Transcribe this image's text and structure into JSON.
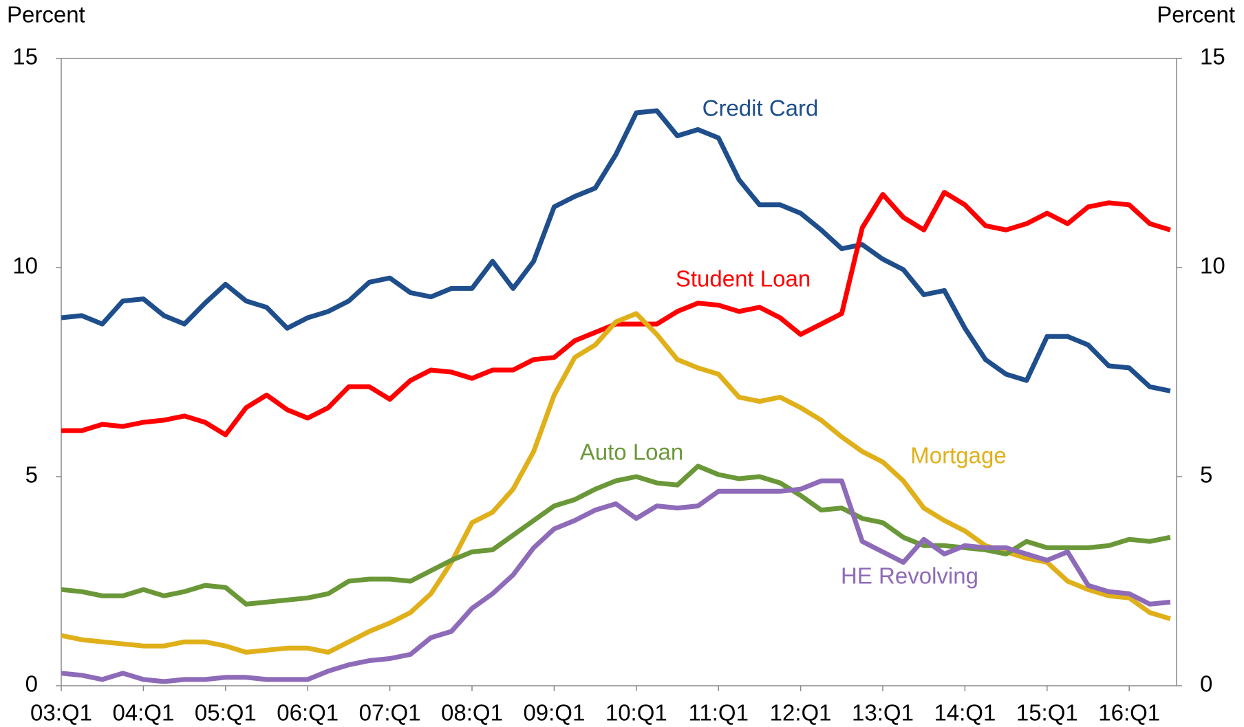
{
  "chart_data": {
    "type": "line",
    "y_label": "Percent",
    "y2_label": "Percent",
    "categories": [
      "03:Q1",
      null,
      null,
      null,
      "04:Q1",
      null,
      null,
      null,
      "05:Q1",
      null,
      null,
      null,
      "06:Q1",
      null,
      null,
      null,
      "07:Q1",
      null,
      null,
      null,
      "08:Q1",
      null,
      null,
      null,
      "09:Q1",
      null,
      null,
      null,
      "10:Q1",
      null,
      null,
      null,
      "11:Q1",
      null,
      null,
      null,
      "12:Q1",
      null,
      null,
      null,
      "13:Q1",
      null,
      null,
      null,
      "14:Q1",
      null,
      null,
      null,
      "15:Q1",
      null,
      null,
      null,
      "16:Q1",
      null,
      null
    ],
    "ylim": [
      0,
      15
    ],
    "yticks": [
      0,
      5,
      10,
      15
    ],
    "y2lim": [
      0,
      15
    ],
    "y2ticks": [
      0,
      5,
      10,
      15
    ],
    "series": [
      {
        "name": "Credit Card",
        "color": "#1f4e8c",
        "values": [
          8.8,
          8.85,
          8.65,
          9.2,
          9.25,
          8.85,
          8.65,
          9.15,
          9.6,
          9.2,
          9.05,
          8.55,
          8.8,
          8.95,
          9.2,
          9.65,
          9.75,
          9.4,
          9.3,
          9.5,
          9.5,
          10.15,
          9.5,
          10.15,
          11.45,
          11.7,
          11.9,
          12.7,
          13.7,
          13.75,
          13.15,
          13.3,
          13.1,
          12.1,
          11.5,
          11.5,
          11.3,
          10.9,
          10.45,
          10.55,
          10.2,
          9.95,
          9.35,
          9.45,
          8.55,
          7.8,
          7.45,
          7.3,
          8.35,
          8.35,
          8.15,
          7.65,
          7.6,
          7.15,
          7.05
        ]
      },
      {
        "name": "Student Loan",
        "color": "#ff0000",
        "values": [
          6.1,
          6.1,
          6.25,
          6.2,
          6.3,
          6.35,
          6.45,
          6.3,
          6.0,
          6.65,
          6.95,
          6.6,
          6.4,
          6.65,
          7.15,
          7.15,
          6.85,
          7.3,
          7.55,
          7.5,
          7.35,
          7.55,
          7.55,
          7.8,
          7.85,
          8.25,
          8.45,
          8.65,
          8.65,
          8.65,
          8.95,
          9.15,
          9.1,
          8.95,
          9.05,
          8.8,
          8.4,
          8.65,
          8.9,
          10.95,
          11.75,
          11.2,
          10.9,
          11.8,
          11.5,
          11.0,
          10.9,
          11.05,
          11.3,
          11.05,
          11.45,
          11.55,
          11.5,
          11.05,
          10.9
        ]
      },
      {
        "name": "Mortgage",
        "color": "#e0b01a",
        "values": [
          1.2,
          1.1,
          1.05,
          1.0,
          0.95,
          0.95,
          1.05,
          1.05,
          0.95,
          0.8,
          0.85,
          0.9,
          0.9,
          0.8,
          1.05,
          1.3,
          1.5,
          1.75,
          2.2,
          2.95,
          3.9,
          4.15,
          4.7,
          5.6,
          6.95,
          7.85,
          8.15,
          8.7,
          8.9,
          8.4,
          7.8,
          7.6,
          7.45,
          6.9,
          6.8,
          6.9,
          6.65,
          6.35,
          5.95,
          5.6,
          5.35,
          4.9,
          4.25,
          3.95,
          3.7,
          3.35,
          3.2,
          3.05,
          2.95,
          2.5,
          2.3,
          2.15,
          2.1,
          1.75,
          1.6
        ]
      },
      {
        "name": "Auto Loan",
        "color": "#6a9838",
        "values": [
          2.3,
          2.25,
          2.15,
          2.15,
          2.3,
          2.15,
          2.25,
          2.4,
          2.35,
          1.95,
          2.0,
          2.05,
          2.1,
          2.2,
          2.5,
          2.55,
          2.55,
          2.5,
          2.75,
          3.0,
          3.2,
          3.25,
          3.6,
          3.95,
          4.3,
          4.45,
          4.7,
          4.9,
          5.0,
          4.85,
          4.8,
          5.25,
          5.05,
          4.95,
          5.0,
          4.85,
          4.55,
          4.2,
          4.25,
          4.0,
          3.9,
          3.55,
          3.35,
          3.35,
          3.3,
          3.25,
          3.15,
          3.45,
          3.3,
          3.3,
          3.3,
          3.35,
          3.5,
          3.45,
          3.55
        ]
      },
      {
        "name": "HE Revolving",
        "color": "#8e6bb8",
        "values": [
          0.3,
          0.25,
          0.15,
          0.3,
          0.15,
          0.1,
          0.15,
          0.15,
          0.2,
          0.2,
          0.15,
          0.15,
          0.15,
          0.35,
          0.5,
          0.6,
          0.65,
          0.75,
          1.15,
          1.3,
          1.85,
          2.2,
          2.65,
          3.3,
          3.75,
          3.95,
          4.2,
          4.35,
          4.0,
          4.3,
          4.25,
          4.3,
          4.65,
          4.65,
          4.65,
          4.65,
          4.7,
          4.9,
          4.9,
          3.45,
          3.2,
          2.95,
          3.5,
          3.15,
          3.35,
          3.3,
          3.3,
          3.15,
          3.0,
          3.2,
          2.4,
          2.25,
          2.2,
          1.95,
          2.0
        ]
      }
    ]
  }
}
